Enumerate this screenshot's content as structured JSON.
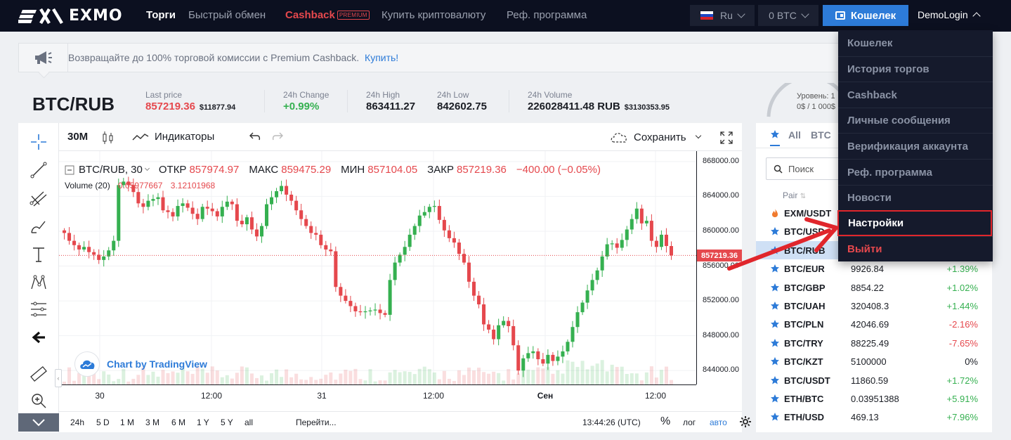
{
  "nav": {
    "logo_text": "EXMO",
    "items": [
      {
        "label": "Торги",
        "left": 208,
        "active": true
      },
      {
        "label": "Быстрый обмен",
        "left": 268
      },
      {
        "label": "Cashback",
        "left": 406,
        "badge": "PREMIUM"
      },
      {
        "label": "Купить криптовалюту",
        "left": 543
      },
      {
        "label": "Реф. программа",
        "left": 721
      }
    ],
    "language": "Ru",
    "balance": "0 BTC",
    "wallet_label": "Кошелек",
    "user_label": "DemoLogin"
  },
  "banner": {
    "text": "Возвращайте до 100% торговой комиссии с Premium Cashback.",
    "link": "Купить!"
  },
  "ticker": {
    "pair": "BTC/RUB",
    "last_price_label": "Last price",
    "last_price": "857219.36",
    "last_price_usd": "$11877.94",
    "change_label": "24h Change",
    "change": "+0.99%",
    "high_label": "24h High",
    "high": "863411.27",
    "low_label": "24h Low",
    "low": "842602.75",
    "volume_label": "24h Volume",
    "volume": "226028411.48 RUB",
    "volume_usd": "$3130353.95",
    "level_label": "Уровень: 1",
    "level_sub": "0$ / 1 000$"
  },
  "chart_toolbar": {
    "interval": "30M",
    "indicators": "Индикаторы",
    "save": "Сохранить"
  },
  "chart_legend": {
    "symbol": "BTC/RUB, 30",
    "open_label": "ОТКР",
    "open": "857974.97",
    "high_label": "МАКС",
    "high": "859475.29",
    "low_label": "МИН",
    "low": "857104.05",
    "close_label": "ЗАКР",
    "close": "857219.36",
    "change": "−400.00 (−0.05%)",
    "volume_label": "Volume (20)",
    "volume_val1": "0.05977667",
    "volume_val2": "3.12101968"
  },
  "chart_data": {
    "type": "candlestick",
    "y_ticks": [
      "868000.00",
      "864000.00",
      "860000.00",
      "856000.00",
      "852000.00",
      "848000.00",
      "844000.00"
    ],
    "x_ticks": [
      "30",
      "12:00",
      "31",
      "12:00",
      "Сен",
      "12:00"
    ],
    "current_price": "857219.36",
    "ylim": [
      842400,
      869200
    ],
    "closes": [
      859800,
      858900,
      858400,
      857900,
      858200,
      857600,
      857300,
      856700,
      857100,
      857800,
      858900,
      865300,
      865700,
      865300,
      864500,
      863200,
      862800,
      863500,
      863700,
      863900,
      862400,
      862200,
      861700,
      862900,
      863200,
      862700,
      862000,
      861400,
      862800,
      862600,
      862300,
      861700,
      862800,
      863400,
      863100,
      861200,
      860800,
      861600,
      860200,
      859400,
      860600,
      863100,
      863900,
      864600,
      865200,
      864200,
      863500,
      862400,
      861400,
      860600,
      859800,
      859600,
      858400,
      857900,
      857700,
      853600,
      852600,
      852000,
      851400,
      850800,
      850700,
      850800,
      850900,
      851000,
      850600,
      850400,
      854400,
      856400,
      857300,
      858200,
      859600,
      860600,
      861800,
      862200,
      862800,
      862900,
      861300,
      860100,
      859200,
      858700,
      857400,
      856400,
      854200,
      852600,
      851600,
      849300,
      848700,
      847600,
      849200,
      849700,
      849100,
      846900,
      844000,
      845400,
      846000,
      846200,
      845300,
      844800,
      845800,
      845100,
      845600,
      846200,
      847300,
      849000,
      850700,
      851800,
      853200,
      854400,
      855500,
      857100,
      858500,
      858600,
      858100,
      859000,
      860200,
      861400,
      862600,
      860900,
      861200,
      858900,
      858200,
      859600,
      858300,
      857219
    ]
  },
  "time_frames": [
    "24h",
    "5 D",
    "1 M",
    "3 M",
    "6 M",
    "1 Y",
    "5 Y",
    "all"
  ],
  "goto_label": "Перейти...",
  "clock": "13:44:26 (UTC)",
  "scale_options": [
    "%",
    "лог",
    "авто"
  ],
  "tv_credit": "Chart by TradingView",
  "market": {
    "tabs": [
      "All",
      "BTC"
    ],
    "search_placeholder": "Поиск",
    "col_pair": "Pair",
    "rows": [
      {
        "pair": "EXM/USDT",
        "price": "",
        "change": "",
        "fire": true
      },
      {
        "pair": "BTC/USD",
        "price": "",
        "change": ""
      },
      {
        "pair": "BTC/RUB",
        "price": "",
        "change": "",
        "selected": true
      },
      {
        "pair": "BTC/EUR",
        "price": "9926.84",
        "change": "+1.39%",
        "up": true
      },
      {
        "pair": "BTC/GBP",
        "price": "8854.22",
        "change": "+1.02%",
        "up": true
      },
      {
        "pair": "BTC/UAH",
        "price": "320408.3",
        "change": "+1.44%",
        "up": true
      },
      {
        "pair": "BTC/PLN",
        "price": "42046.69",
        "change": "-2.16%",
        "up": false
      },
      {
        "pair": "BTC/TRY",
        "price": "88225.49",
        "change": "-7.65%",
        "up": false
      },
      {
        "pair": "BTC/KZT",
        "price": "5100000",
        "change": "0%",
        "flat": true
      },
      {
        "pair": "BTC/USDT",
        "price": "11860.59",
        "change": "+1.72%",
        "up": true
      },
      {
        "pair": "ETH/BTC",
        "price": "0.03951388",
        "change": "+5.91%",
        "up": true
      },
      {
        "pair": "ETH/USD",
        "price": "469.13",
        "change": "+7.96%",
        "up": true
      }
    ]
  },
  "user_menu": [
    {
      "label": "Кошелек"
    },
    {
      "label": "История торгов"
    },
    {
      "label": "Cashback"
    },
    {
      "label": "Личные сообщения"
    },
    {
      "label": "Верификация аккаунта"
    },
    {
      "label": "Реф. программа"
    },
    {
      "label": "Новости"
    },
    {
      "label": "Настройки",
      "active": true
    },
    {
      "label": "Выйти",
      "danger": true
    }
  ],
  "colors": {
    "accent": "#2d7bd8",
    "up": "#35b050",
    "down": "#e5484d",
    "nav_bg": "#0c1020",
    "annotation": "#e0262c"
  }
}
